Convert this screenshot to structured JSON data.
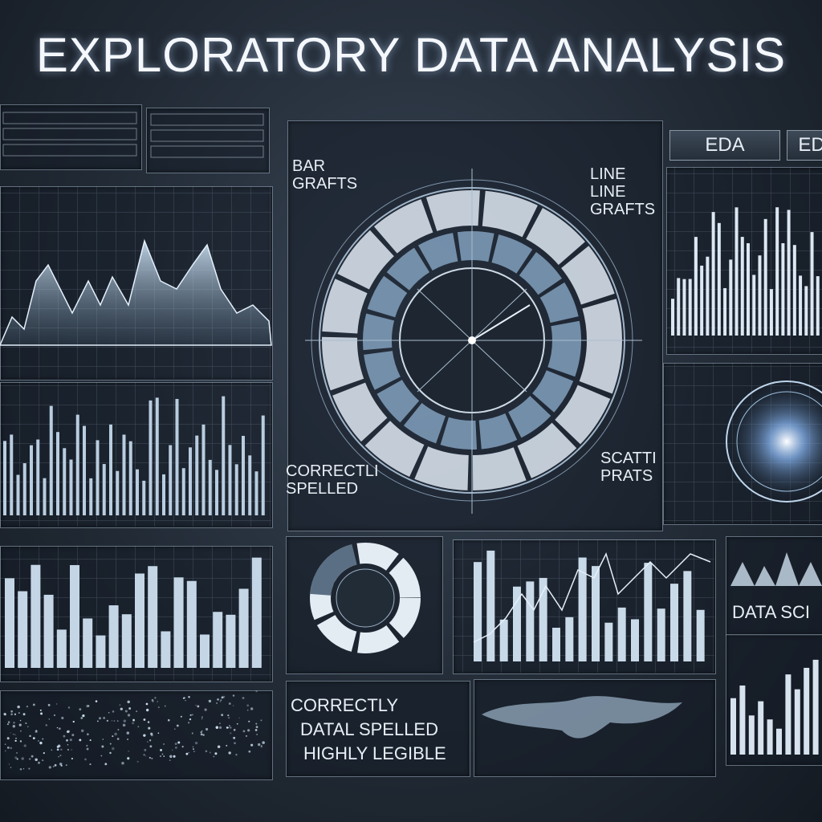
{
  "title": "EXPLORATORY DATA ANALYSIS",
  "tabs": [
    "EDA",
    "ED"
  ],
  "center": {
    "label_bar": "BAR GRAFTS",
    "label_line": "LINE LINE GRAFTS",
    "label_scatter": "SCATTI PRATS",
    "label_correct": "CORRECTLI SPELLED"
  },
  "bottom_note": {
    "line1": "CORRECTLY",
    "line2": "DATAL SPELLED",
    "line3": "HIGHLY LEGIBLE"
  },
  "right_label": "DATA SCI",
  "colors": {
    "accent": "#9fc4e8",
    "bar": "#b9cde0",
    "line": "#d6e6f4"
  }
}
